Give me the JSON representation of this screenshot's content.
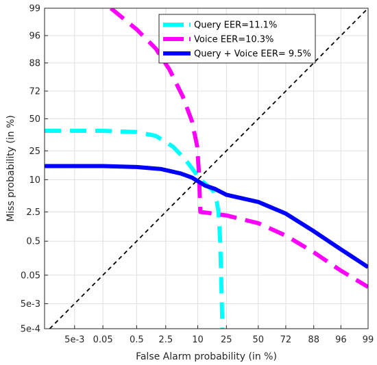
{
  "chart_data": {
    "type": "line",
    "title": "",
    "xlabel": "False Alarm probability (in %)",
    "ylabel": "Miss probability (in %)",
    "x_ticks": [
      "5e-3",
      "0.05",
      "0.5",
      "2.5",
      "10",
      "25",
      "50",
      "72",
      "88",
      "96",
      "99"
    ],
    "y_ticks": [
      "99",
      "96",
      "88",
      "72",
      "50",
      "25",
      "10",
      "2.5",
      "0.5",
      "0.05",
      "5e-3",
      "5e-4"
    ],
    "xlim": [
      0.0003,
      99
    ],
    "ylim": [
      0.0005,
      99
    ],
    "grid": true,
    "legend_position": "top-right",
    "series": [
      {
        "name": "Query EER=11.1%",
        "color": "#00FFFF",
        "style": "dashed",
        "points": [
          [
            0.0003,
            40
          ],
          [
            0.003,
            40
          ],
          [
            0.05,
            40
          ],
          [
            0.5,
            39
          ],
          [
            1.5,
            36
          ],
          [
            3.5,
            28
          ],
          [
            6,
            20
          ],
          [
            9,
            13
          ],
          [
            11,
            10
          ],
          [
            14,
            8
          ],
          [
            17,
            6.5
          ],
          [
            19,
            4
          ],
          [
            20,
            2.5
          ],
          [
            21,
            0.5
          ],
          [
            21.6,
            0.05
          ],
          [
            22,
            0.005
          ],
          [
            22.4,
            0.0005
          ]
        ]
      },
      {
        "name": "Voice EER=10.3%",
        "color": "#FF00FF",
        "style": "dashed",
        "points": [
          [
            0.09,
            99
          ],
          [
            0.5,
            97
          ],
          [
            1.5,
            93
          ],
          [
            3,
            85
          ],
          [
            5.5,
            68
          ],
          [
            8,
            48
          ],
          [
            9.8,
            28
          ],
          [
            10.5,
            12
          ],
          [
            10.8,
            5
          ],
          [
            11,
            2.5
          ],
          [
            14,
            2.4
          ],
          [
            25,
            2.1
          ],
          [
            50,
            1.4
          ],
          [
            72,
            0.7
          ],
          [
            88,
            0.25
          ],
          [
            96,
            0.07
          ],
          [
            99,
            0.02
          ]
        ]
      },
      {
        "name": "Query + Voice EER= 9.5%",
        "color": "#0000FF",
        "style": "solid",
        "points": [
          [
            0.0003,
            16
          ],
          [
            0.003,
            16
          ],
          [
            0.05,
            16
          ],
          [
            0.5,
            15.5
          ],
          [
            2,
            14.5
          ],
          [
            5,
            12.5
          ],
          [
            8,
            10.8
          ],
          [
            10,
            9.5
          ],
          [
            13,
            8
          ],
          [
            18,
            7
          ],
          [
            25,
            5.5
          ],
          [
            50,
            4
          ],
          [
            72,
            2.3
          ],
          [
            88,
            0.9
          ],
          [
            96,
            0.3
          ],
          [
            99,
            0.09
          ]
        ]
      },
      {
        "name": "",
        "color": "#000000",
        "style": "dashed-thin",
        "points": [
          [
            0.0005,
            0.0005
          ],
          [
            99,
            99
          ]
        ]
      }
    ]
  }
}
